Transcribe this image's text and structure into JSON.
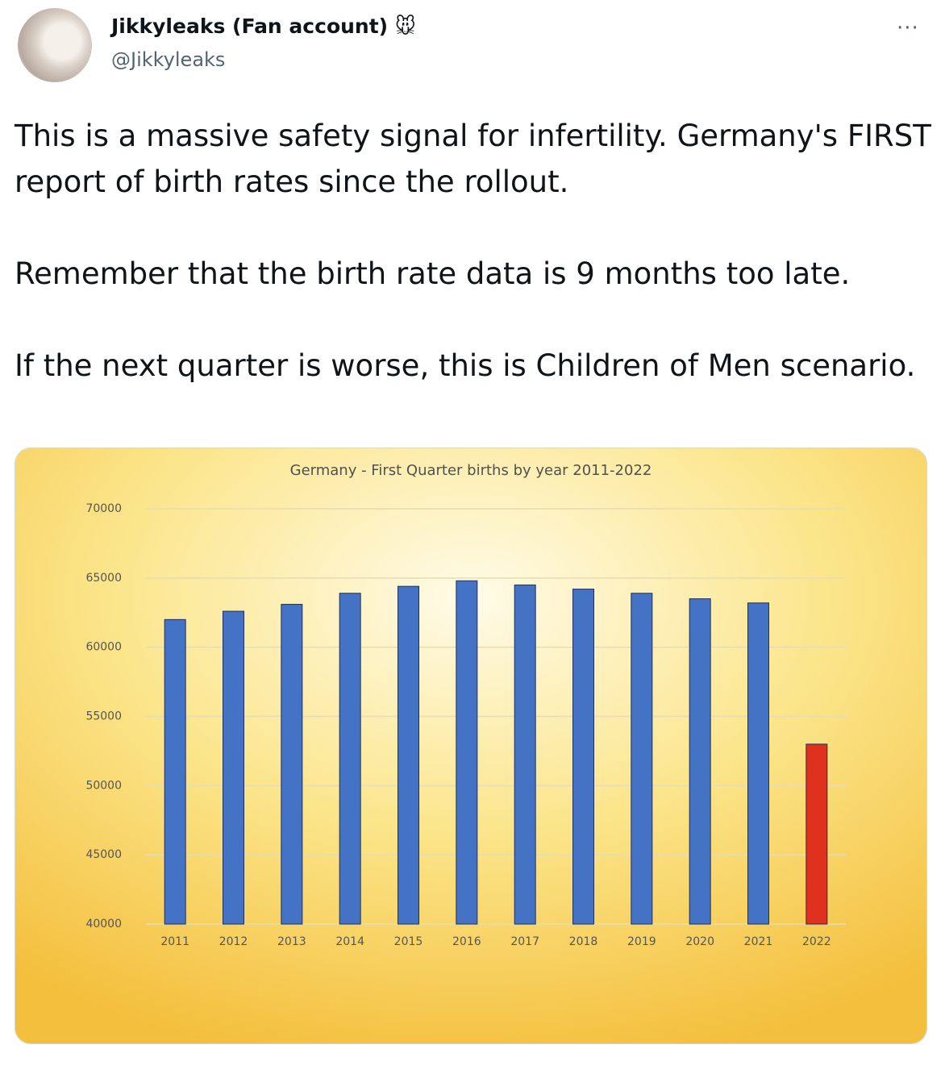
{
  "tweet": {
    "name": "Jikkyleaks (Fan account) 🐭",
    "handle": "@Jikkyleaks",
    "text": [
      "This is a massive safety signal for infertility. Germany's FIRST report of birth rates since the rollout.",
      "Remember that the birth rate data is 9 months too late.",
      "If the next quarter is worse, this is Children of Men scenario."
    ]
  },
  "chart_data": {
    "type": "bar",
    "title": "Germany - First Quarter births by year 2011-2022",
    "categories": [
      "2011",
      "2012",
      "2013",
      "2014",
      "2015",
      "2016",
      "2017",
      "2018",
      "2019",
      "2020",
      "2021",
      "2022"
    ],
    "values": [
      62000,
      62600,
      63100,
      63900,
      64400,
      64800,
      64500,
      64200,
      63900,
      63500,
      63200,
      53000
    ],
    "colors": [
      "#4472c4",
      "#4472c4",
      "#4472c4",
      "#4472c4",
      "#4472c4",
      "#4472c4",
      "#4472c4",
      "#4472c4",
      "#4472c4",
      "#4472c4",
      "#4472c4",
      "#e0301e"
    ],
    "ylim": [
      40000,
      70000
    ],
    "yticks": [
      40000,
      45000,
      50000,
      55000,
      60000,
      65000,
      70000
    ],
    "grid": true
  }
}
